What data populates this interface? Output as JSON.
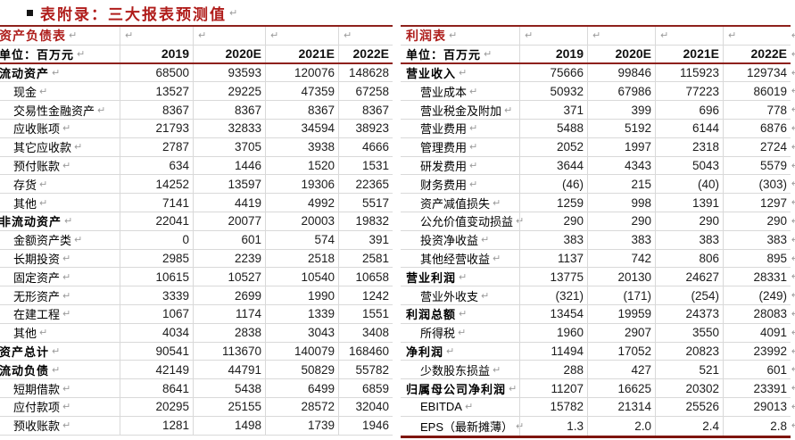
{
  "title": {
    "bullet": "▪",
    "text": "表附录：三大报表预测值"
  },
  "paragraph_mark": "↵",
  "colors": {
    "title_red": "#b01d1b",
    "rule_red": "#8e211c",
    "bottom_rule_red": "#7e150d",
    "grid_gray": "#d9d9d9"
  },
  "tables": [
    {
      "id": "balance-sheet",
      "name": "资产负债表",
      "unit_label": "单位：百万元",
      "columns": [
        "2019",
        "2020E",
        "2021E",
        "2022E"
      ],
      "rows": [
        {
          "label": "流动资产",
          "bold": true,
          "indent": false,
          "values": [
            "68500",
            "93593",
            "120076",
            "148628"
          ]
        },
        {
          "label": "现金",
          "bold": false,
          "indent": true,
          "values": [
            "13527",
            "29225",
            "47359",
            "67258"
          ]
        },
        {
          "label": "交易性金融资产",
          "bold": false,
          "indent": true,
          "values": [
            "8367",
            "8367",
            "8367",
            "8367"
          ]
        },
        {
          "label": "应收账项",
          "bold": false,
          "indent": true,
          "values": [
            "21793",
            "32833",
            "34594",
            "38923"
          ]
        },
        {
          "label": "其它应收款",
          "bold": false,
          "indent": true,
          "values": [
            "2787",
            "3705",
            "3938",
            "4666"
          ]
        },
        {
          "label": "预付账款",
          "bold": false,
          "indent": true,
          "values": [
            "634",
            "1446",
            "1520",
            "1531"
          ]
        },
        {
          "label": "存货",
          "bold": false,
          "indent": true,
          "values": [
            "14252",
            "13597",
            "19306",
            "22365"
          ]
        },
        {
          "label": "其他",
          "bold": false,
          "indent": true,
          "values": [
            "7141",
            "4419",
            "4992",
            "5517"
          ]
        },
        {
          "label": "非流动资产",
          "bold": true,
          "indent": false,
          "values": [
            "22041",
            "20077",
            "20003",
            "19832"
          ]
        },
        {
          "label": "金额资产类",
          "bold": false,
          "indent": true,
          "values": [
            "0",
            "601",
            "574",
            "391"
          ]
        },
        {
          "label": "长期投资",
          "bold": false,
          "indent": true,
          "values": [
            "2985",
            "2239",
            "2518",
            "2581"
          ]
        },
        {
          "label": "固定资产",
          "bold": false,
          "indent": true,
          "values": [
            "10615",
            "10527",
            "10540",
            "10658"
          ]
        },
        {
          "label": "无形资产",
          "bold": false,
          "indent": true,
          "values": [
            "3339",
            "2699",
            "1990",
            "1242"
          ]
        },
        {
          "label": "在建工程",
          "bold": false,
          "indent": true,
          "values": [
            "1067",
            "1174",
            "1339",
            "1551"
          ]
        },
        {
          "label": "其他",
          "bold": false,
          "indent": true,
          "values": [
            "4034",
            "2838",
            "3043",
            "3408"
          ]
        },
        {
          "label": "资产总计",
          "bold": true,
          "indent": false,
          "values": [
            "90541",
            "113670",
            "140079",
            "168460"
          ]
        },
        {
          "label": "流动负债",
          "bold": true,
          "indent": false,
          "values": [
            "42149",
            "44791",
            "50829",
            "55782"
          ]
        },
        {
          "label": "短期借款",
          "bold": false,
          "indent": true,
          "values": [
            "8641",
            "5438",
            "6499",
            "6859"
          ]
        },
        {
          "label": "应付款项",
          "bold": false,
          "indent": true,
          "values": [
            "20295",
            "25155",
            "28572",
            "32040"
          ]
        },
        {
          "label": "预收账款",
          "bold": false,
          "indent": true,
          "values": [
            "1281",
            "1498",
            "1739",
            "1946"
          ]
        }
      ]
    },
    {
      "id": "income-statement",
      "name": "利润表",
      "unit_label": "单位：百万元",
      "columns": [
        "2019",
        "2020E",
        "2021E",
        "2022E"
      ],
      "rows": [
        {
          "label": "营业收入",
          "bold": true,
          "indent": false,
          "values": [
            "75666",
            "99846",
            "115923",
            "129734"
          ]
        },
        {
          "label": "营业成本",
          "bold": false,
          "indent": true,
          "values": [
            "50932",
            "67986",
            "77223",
            "86019"
          ]
        },
        {
          "label": "营业税金及附加",
          "bold": false,
          "indent": true,
          "values": [
            "371",
            "399",
            "696",
            "778"
          ]
        },
        {
          "label": "营业费用",
          "bold": false,
          "indent": true,
          "values": [
            "5488",
            "5192",
            "6144",
            "6876"
          ]
        },
        {
          "label": "管理费用",
          "bold": false,
          "indent": true,
          "values": [
            "2052",
            "1997",
            "2318",
            "2724"
          ]
        },
        {
          "label": "研发费用",
          "bold": false,
          "indent": true,
          "values": [
            "3644",
            "4343",
            "5043",
            "5579"
          ]
        },
        {
          "label": "财务费用",
          "bold": false,
          "indent": true,
          "values": [
            "(46)",
            "215",
            "(40)",
            "(303)"
          ]
        },
        {
          "label": "资产减值损失",
          "bold": false,
          "indent": true,
          "values": [
            "1259",
            "998",
            "1391",
            "1297"
          ]
        },
        {
          "label": "公允价值变动损益",
          "bold": false,
          "indent": true,
          "values": [
            "290",
            "290",
            "290",
            "290"
          ]
        },
        {
          "label": "投资净收益",
          "bold": false,
          "indent": true,
          "values": [
            "383",
            "383",
            "383",
            "383"
          ]
        },
        {
          "label": "其他经营收益",
          "bold": false,
          "indent": true,
          "values": [
            "1137",
            "742",
            "806",
            "895"
          ]
        },
        {
          "label": "营业利润",
          "bold": true,
          "indent": false,
          "values": [
            "13775",
            "20130",
            "24627",
            "28331"
          ]
        },
        {
          "label": "营业外收支",
          "bold": false,
          "indent": true,
          "values": [
            "(321)",
            "(171)",
            "(254)",
            "(249)"
          ]
        },
        {
          "label": "利润总额",
          "bold": true,
          "indent": false,
          "values": [
            "13454",
            "19959",
            "24373",
            "28083"
          ]
        },
        {
          "label": "所得税",
          "bold": false,
          "indent": true,
          "values": [
            "1960",
            "2907",
            "3550",
            "4091"
          ]
        },
        {
          "label": "净利润",
          "bold": true,
          "indent": false,
          "values": [
            "11494",
            "17052",
            "20823",
            "23992"
          ]
        },
        {
          "label": "少数股东损益",
          "bold": false,
          "indent": true,
          "values": [
            "288",
            "427",
            "521",
            "601"
          ]
        },
        {
          "label": "归属母公司净利润",
          "bold": true,
          "indent": false,
          "values": [
            "11207",
            "16625",
            "20302",
            "23391"
          ]
        },
        {
          "label": "EBITDA",
          "bold": false,
          "indent": true,
          "values": [
            "15782",
            "21314",
            "25526",
            "29013"
          ]
        },
        {
          "label": "EPS（最新摊薄）",
          "bold": false,
          "indent": true,
          "values": [
            "1.3",
            "2.0",
            "2.4",
            "2.8"
          ]
        }
      ]
    }
  ]
}
